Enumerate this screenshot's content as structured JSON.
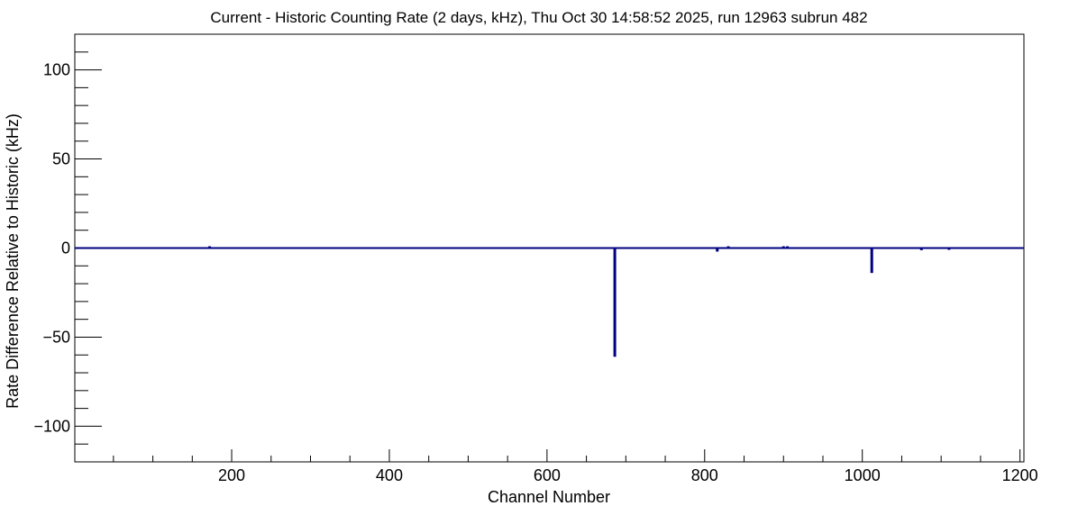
{
  "chart_data": {
    "type": "histogram",
    "title": "Current - Historic Counting Rate (2 days, kHz), Thu Oct 30 14:58:52 2025, run 12963 subrun 482",
    "xlabel": "Channel Number",
    "ylabel": "Rate Difference Relative to Historic (kHz)",
    "xlim": [
      1,
      1205
    ],
    "ylim": [
      -120,
      120
    ],
    "x_ticks": [
      200,
      400,
      600,
      800,
      1000,
      1200
    ],
    "y_ticks": [
      -100,
      -50,
      0,
      50,
      100
    ],
    "y_tick_labels": [
      "−100",
      "−50",
      "0",
      "50",
      "100"
    ],
    "grid": false,
    "legend": "none",
    "line_color": "#000080",
    "baseline": 0,
    "spikes": [
      {
        "x": 686,
        "y": -61
      },
      {
        "x": 1012,
        "y": -14
      },
      {
        "x": 816,
        "y": -2
      },
      {
        "x": 172,
        "y": 1
      },
      {
        "x": 830,
        "y": 1
      },
      {
        "x": 900,
        "y": 1
      },
      {
        "x": 905,
        "y": 1
      },
      {
        "x": 1075,
        "y": -1.2
      },
      {
        "x": 1110,
        "y": -1
      }
    ]
  }
}
